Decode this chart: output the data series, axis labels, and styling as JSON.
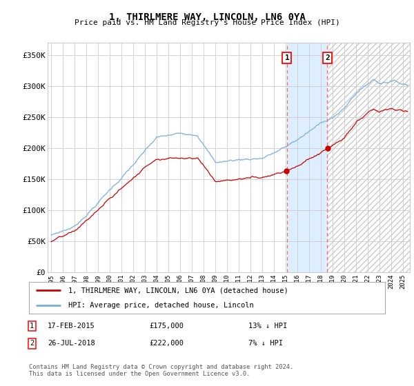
{
  "title": "1, THIRLMERE WAY, LINCOLN, LN6 0YA",
  "subtitle": "Price paid vs. HM Land Registry's House Price Index (HPI)",
  "ylabel_ticks": [
    "£0",
    "£50K",
    "£100K",
    "£150K",
    "£200K",
    "£250K",
    "£300K",
    "£350K"
  ],
  "ylim": [
    0,
    370000
  ],
  "yticks": [
    0,
    50000,
    100000,
    150000,
    200000,
    250000,
    300000,
    350000
  ],
  "purchase1_date": "17-FEB-2015",
  "purchase1_price": 175000,
  "purchase1_hpi_diff": "13% ↓ HPI",
  "purchase1_year": 2015.12,
  "purchase2_date": "26-JUL-2018",
  "purchase2_price": 222000,
  "purchase2_hpi_diff": "7% ↓ HPI",
  "purchase2_year": 2018.56,
  "legend_red": "1, THIRLMERE WAY, LINCOLN, LN6 0YA (detached house)",
  "legend_blue": "HPI: Average price, detached house, Lincoln",
  "footer": "Contains HM Land Registry data © Crown copyright and database right 2024.\nThis data is licensed under the Open Government Licence v3.0.",
  "red_color": "#cc0000",
  "blue_color": "#7aaddb",
  "shade_color": "#ddeeff",
  "bg_color": "#ffffff",
  "grid_color": "#cccccc"
}
